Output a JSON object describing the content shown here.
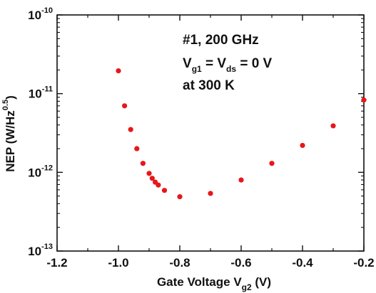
{
  "chart_data": {
    "type": "scatter",
    "xlabel": {
      "main": "Gate Voltage V",
      "sub": "g2",
      "tail": " (V)"
    },
    "ylabel": {
      "main": "NEP (W/Hz",
      "sup": "0.5",
      "tail": ")"
    },
    "xlim": [
      -1.2,
      -0.2
    ],
    "ylim": [
      1e-13,
      1e-10
    ],
    "yscale": "log",
    "grid": false,
    "x_ticks": [
      -1.2,
      -1.0,
      -0.8,
      -0.6,
      -0.4,
      -0.2
    ],
    "x_tick_labels": [
      "-1.2",
      "-1.0",
      "-0.8",
      "-0.6",
      "-0.4",
      "-0.2"
    ],
    "y_ticks": [
      1e-13,
      1e-12,
      1e-11,
      1e-10
    ],
    "y_tick_labels": [
      {
        "base": "10",
        "exp": "-13"
      },
      {
        "base": "10",
        "exp": "-12"
      },
      {
        "base": "10",
        "exp": "-11"
      },
      {
        "base": "10",
        "exp": "-10"
      }
    ],
    "annotation": {
      "line1": "#1, 200 GHz",
      "line2": {
        "a": "V",
        "a_sub": "g1",
        "b": " =  V",
        "b_sub": "ds",
        "c": " = 0 V"
      },
      "line3": "at 300 K"
    },
    "marker_color": "#e8161b",
    "series": [
      {
        "x": [
          -1.0,
          -0.98,
          -0.96,
          -0.94,
          -0.92,
          -0.9,
          -0.89,
          -0.88,
          -0.87,
          -0.85,
          -0.8,
          -0.7,
          -0.6,
          -0.5,
          -0.4,
          -0.3,
          -0.2
        ],
        "y": [
          1.95e-11,
          7e-12,
          3.5e-12,
          2e-12,
          1.3e-12,
          9.7e-13,
          8.4e-13,
          7.5e-13,
          6.9e-13,
          5.9e-13,
          4.9e-13,
          5.4e-13,
          8e-13,
          1.3e-12,
          2.2e-12,
          3.9e-12,
          8.3e-12
        ]
      }
    ]
  }
}
